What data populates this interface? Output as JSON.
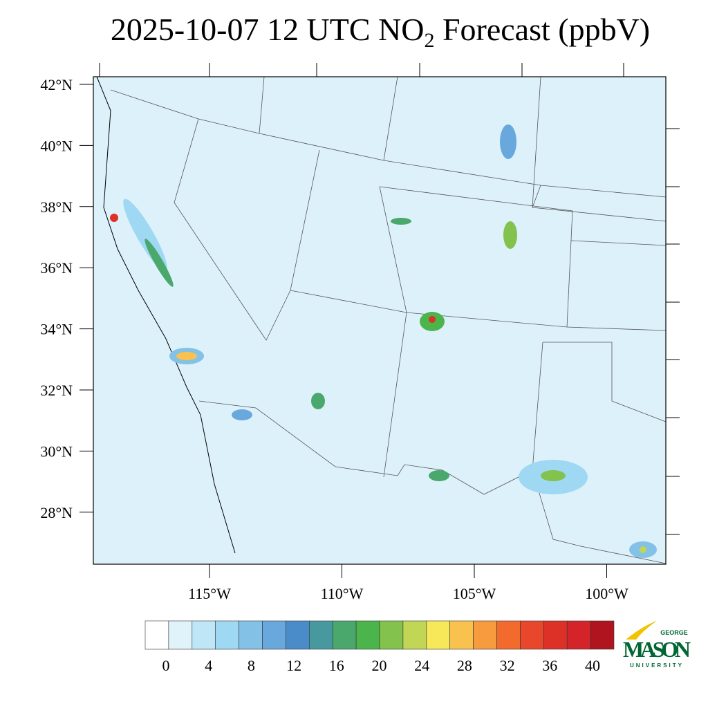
{
  "title": {
    "main": "2025-10-07 12 UTC NO",
    "sub": "2",
    "rest": " Forecast (ppbV)"
  },
  "map": {
    "lat_ticks": [
      {
        "value": 42,
        "label": "42°N"
      },
      {
        "value": 40,
        "label": "40°N"
      },
      {
        "value": 38,
        "label": "38°N"
      },
      {
        "value": 36,
        "label": "36°N"
      },
      {
        "value": 34,
        "label": "34°N"
      },
      {
        "value": 32,
        "label": "32°N"
      },
      {
        "value": 30,
        "label": "30°N"
      },
      {
        "value": 28,
        "label": "28°N"
      }
    ],
    "lon_ticks": [
      {
        "value": -115,
        "label": "115°W"
      },
      {
        "value": -110,
        "label": "110°W"
      },
      {
        "value": -105,
        "label": "105°W"
      },
      {
        "value": -100,
        "label": "100°W"
      }
    ]
  },
  "colorbar": {
    "colors": [
      "#ffffff",
      "#e0f3fb",
      "#bfe6f7",
      "#9fd8f3",
      "#84c1e6",
      "#68a8dc",
      "#4a8bca",
      "#48999f",
      "#4aa86d",
      "#4bb54b",
      "#83c24d",
      "#c1d655",
      "#f6e858",
      "#f9c24f",
      "#f89a3e",
      "#f26a2c",
      "#e8472c",
      "#dd3127",
      "#d5232a",
      "#b0141f"
    ],
    "ticks": [
      0,
      4,
      8,
      12,
      16,
      20,
      24,
      28,
      32,
      36,
      40
    ]
  },
  "logo": {
    "top": "GEORGE",
    "name": "MASON",
    "bottom": "UNIVERSITY"
  }
}
